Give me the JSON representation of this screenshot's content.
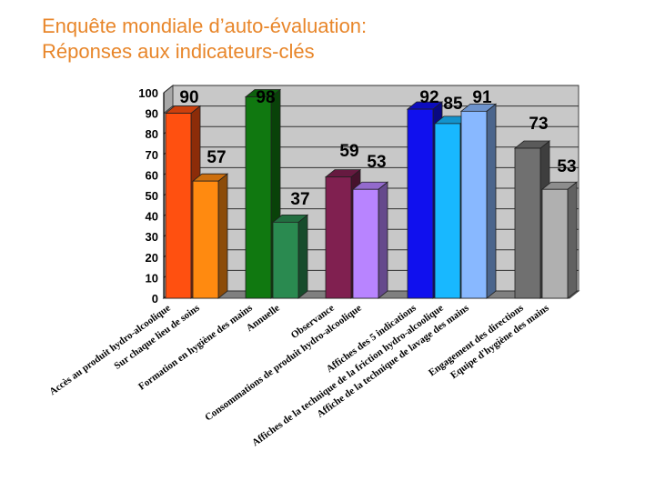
{
  "title_line1": "Enquête mondiale d’auto-évaluation:",
  "title_line2": "Réponses aux indicateurs-clés",
  "colors": {
    "title": "#e8862a"
  },
  "chart_data": {
    "type": "bar",
    "ylim": [
      0,
      100
    ],
    "yticks": [
      0,
      10,
      20,
      30,
      40,
      50,
      60,
      70,
      80,
      90,
      100
    ],
    "grid": true,
    "categories": [
      "Accès au produit hydro-alcoolique",
      "Sur chaque lieu de soins",
      "Formation en hygiène des mains",
      "Annuelle",
      "Observance",
      "Consommations de produit hydro-alcoolique",
      "Affiches des 5 indications",
      "Affiches de la technique de la friction hydro-alcoolique",
      "Affiche de la technique de lavage des mains",
      "Engagement des directions",
      "Equipe d'hygiène des mains"
    ],
    "values": [
      90,
      57,
      98,
      37,
      59,
      53,
      92,
      85,
      91,
      73,
      53
    ],
    "bar_colors": [
      "#ff5010",
      "#ff8a10",
      "#107810",
      "#2a8a50",
      "#802050",
      "#b884ff",
      "#1010ee",
      "#18b8ff",
      "#88b8ff",
      "#707070",
      "#b0b0b0"
    ],
    "labels": [
      "90",
      "57",
      "98",
      "37",
      "59",
      "53",
      "92",
      "85",
      "91",
      "73",
      "53"
    ]
  }
}
